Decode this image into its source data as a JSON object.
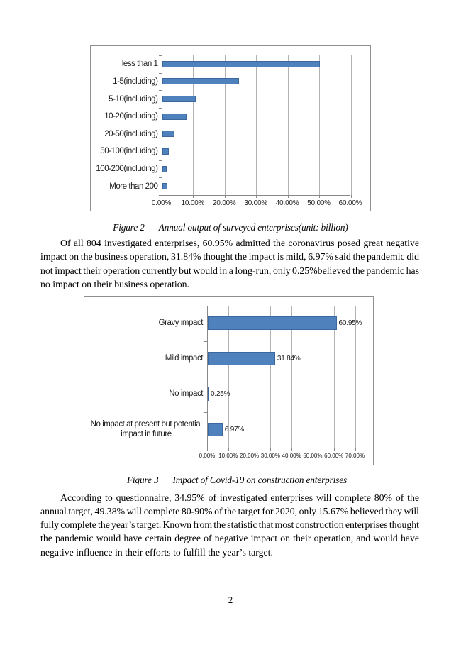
{
  "page": {
    "number": "2"
  },
  "figures": [
    {
      "id": "figure2",
      "caption": {
        "label": "Figure 2",
        "text": "Annual output of surveyed enterprises(unit: billion)"
      },
      "chart_data": {
        "type": "bar",
        "orientation": "horizontal",
        "categories": [
          "less than 1",
          "1-5(including)",
          "5-10(including)",
          "10-20(including)",
          "20-50(including)",
          "50-100(including)",
          "100-200(including)",
          "More than 200"
        ],
        "values": [
          50.2,
          24.4,
          10.8,
          7.7,
          3.9,
          2.2,
          1.4,
          1.6
        ],
        "unit": "%",
        "x_tick_labels": [
          "0.00%",
          "10.00%",
          "20.00%",
          "30.00%",
          "40.00%",
          "50.00%",
          "60.00%"
        ],
        "x_tick_values": [
          0,
          10,
          20,
          30,
          40,
          50,
          60
        ],
        "xlim": [
          0,
          60
        ],
        "grid": true,
        "legend": false,
        "data_labels": null,
        "bar_color": "#4f81bd"
      }
    },
    {
      "id": "figure3",
      "caption": {
        "label": "Figure 3",
        "text": "Impact of Covid-19 on construction enterprises"
      },
      "chart_data": {
        "type": "bar",
        "orientation": "horizontal",
        "categories": [
          "Gravy impact",
          "Mild impact",
          "No impact",
          "No impact at present but potential impact in future"
        ],
        "values": [
          60.95,
          31.84,
          0.25,
          6.97
        ],
        "unit": "%",
        "x_tick_labels": [
          "0.00%",
          "10.00%",
          "20.00%",
          "30.00%",
          "40.00%",
          "50.00%",
          "60.00%",
          "70.00%"
        ],
        "x_tick_values": [
          0,
          10,
          20,
          30,
          40,
          50,
          60,
          70
        ],
        "xlim": [
          0,
          70
        ],
        "grid": true,
        "legend": false,
        "data_labels": [
          "60.95%",
          "31.84%",
          "0.25%",
          "6.97%"
        ],
        "bar_color": "#4f81bd"
      }
    }
  ],
  "paragraphs": {
    "p1": {
      "lines": [
        "Of all 804 investigated enterprises, 60.95% admitted the coronavirus posed great negative",
        "impact on the business operation, 31.84% thought the impact is mild, 6.97% said the pandemic did",
        "not impact their operation currently but would in a long-run, only 0.25%believed the pandemic has",
        "no impact on their business operation."
      ]
    },
    "p2": {
      "lines": [
        "According to questionnaire, 34.95% of investigated enterprises will complete 80% of the",
        "annual target, 49.38% will complete 80-90% of the target for 2020, only 15.67% believed they will",
        "fully complete the year’s target. Known from the statistic that most construction enterprises thought",
        "the pandemic would have certain degree of negative impact on their operation, and would have",
        "negative influence in their efforts to fulfill the year’s target."
      ]
    }
  }
}
